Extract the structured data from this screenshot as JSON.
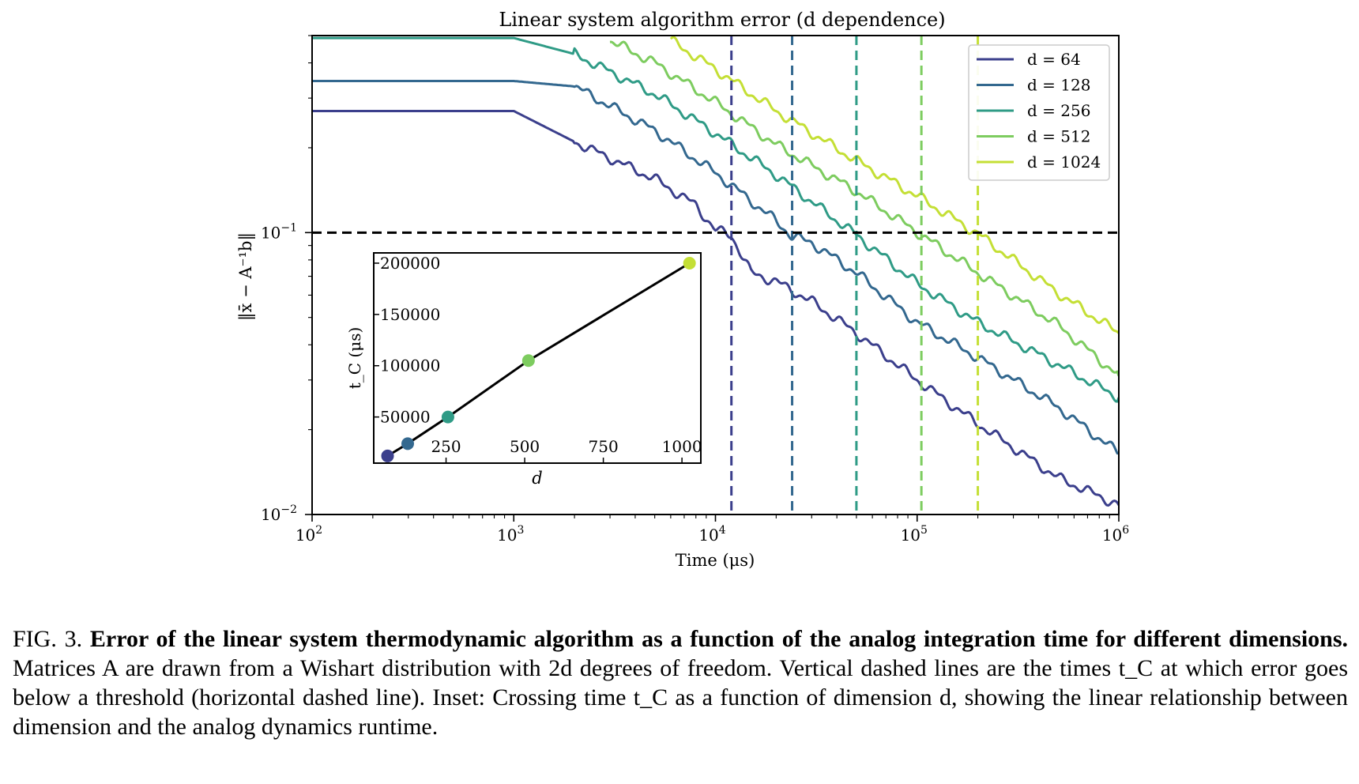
{
  "chart_data": [
    {
      "type": "line",
      "title": "Linear system algorithm error (d dependence)",
      "xlabel": "Time (μs)",
      "ylabel": "‖x̄ − A⁻¹b‖",
      "xscale": "log",
      "yscale": "log",
      "xlim": [
        100,
        1000000
      ],
      "ylim": [
        0.01,
        0.5
      ],
      "xticks": [
        {
          "value": 100,
          "base": "10",
          "exp": "2"
        },
        {
          "value": 1000,
          "base": "10",
          "exp": "3"
        },
        {
          "value": 10000,
          "base": "10",
          "exp": "4"
        },
        {
          "value": 100000,
          "base": "10",
          "exp": "5"
        },
        {
          "value": 1000000,
          "base": "10",
          "exp": "6"
        }
      ],
      "yticks": [
        {
          "value": 0.01,
          "base": "10",
          "exp": "−2"
        },
        {
          "value": 0.1,
          "base": "10",
          "exp": "−1"
        }
      ],
      "legend_position": "top-right",
      "threshold": 0.1,
      "series": [
        {
          "name": "d = 64",
          "color": "#3b3f8c",
          "crossing_time": 12000,
          "x": [
            100,
            1000,
            2000,
            5000,
            8000,
            10000,
            12000,
            15000,
            20000,
            30000,
            50000,
            100000,
            200000,
            500000,
            1000000
          ],
          "y": [
            0.27,
            0.27,
            0.21,
            0.155,
            0.125,
            0.102,
            0.098,
            0.072,
            0.067,
            0.057,
            0.044,
            0.03,
            0.021,
            0.0135,
            0.0108
          ]
        },
        {
          "name": "d = 128",
          "color": "#33688f",
          "crossing_time": 24000,
          "x": [
            100,
            1000,
            2000,
            5000,
            10000,
            20000,
            24000,
            30000,
            50000,
            100000,
            200000,
            500000,
            1000000
          ],
          "y": [
            0.345,
            0.345,
            0.33,
            0.23,
            0.163,
            0.11,
            0.097,
            0.092,
            0.072,
            0.048,
            0.036,
            0.024,
            0.0165
          ]
        },
        {
          "name": "d = 256",
          "color": "#2f9b86",
          "crossing_time": 50000,
          "x": [
            100,
            1000,
            2000,
            5000,
            10000,
            20000,
            50000,
            100000,
            200000,
            500000,
            1000000
          ],
          "y": [
            0.49,
            0.49,
            0.43,
            0.31,
            0.225,
            0.16,
            0.098,
            0.066,
            0.048,
            0.034,
            0.026
          ]
        },
        {
          "name": "d = 512",
          "color": "#7dcc5f",
          "crossing_time": 105000,
          "x": [
            3000,
            5000,
            10000,
            20000,
            50000,
            105000,
            200000,
            500000,
            1000000
          ],
          "y": [
            0.48,
            0.4,
            0.29,
            0.205,
            0.14,
            0.098,
            0.072,
            0.047,
            0.031
          ]
        },
        {
          "name": "d = 1024",
          "color": "#c4df35",
          "crossing_time": 200000,
          "x": [
            6000,
            10000,
            20000,
            50000,
            100000,
            200000,
            500000,
            1000000
          ],
          "y": [
            0.48,
            0.38,
            0.27,
            0.18,
            0.135,
            0.099,
            0.061,
            0.044
          ]
        }
      ]
    },
    {
      "type": "line",
      "title": "",
      "xlabel": "d",
      "ylabel": "t_C (μs)",
      "xlim": [
        20,
        1060
      ],
      "ylim": [
        5000,
        210000
      ],
      "xticks": [
        250,
        500,
        750,
        1000
      ],
      "yticks": [
        50000,
        100000,
        150000,
        200000
      ],
      "points": [
        {
          "x": 64,
          "y": 12000,
          "color": "#3b3f8c"
        },
        {
          "x": 128,
          "y": 24000,
          "color": "#33688f"
        },
        {
          "x": 256,
          "y": 50000,
          "color": "#2f9b86"
        },
        {
          "x": 512,
          "y": 105000,
          "color": "#7dcc5f"
        },
        {
          "x": 1024,
          "y": 200000,
          "color": "#c4df35"
        }
      ]
    }
  ],
  "caption": {
    "label": "FIG. 3.",
    "bold": "Error of the linear system thermodynamic algorithm as a function of the analog integration time for different dimensions.",
    "text": "Matrices A are drawn from a Wishart distribution with 2d degrees of freedom. Vertical dashed lines are the times t_C at which error goes below a threshold (horizontal dashed line). Inset: Crossing time t_C as a function of dimension d, showing the linear relationship between dimension and the analog dynamics runtime."
  }
}
